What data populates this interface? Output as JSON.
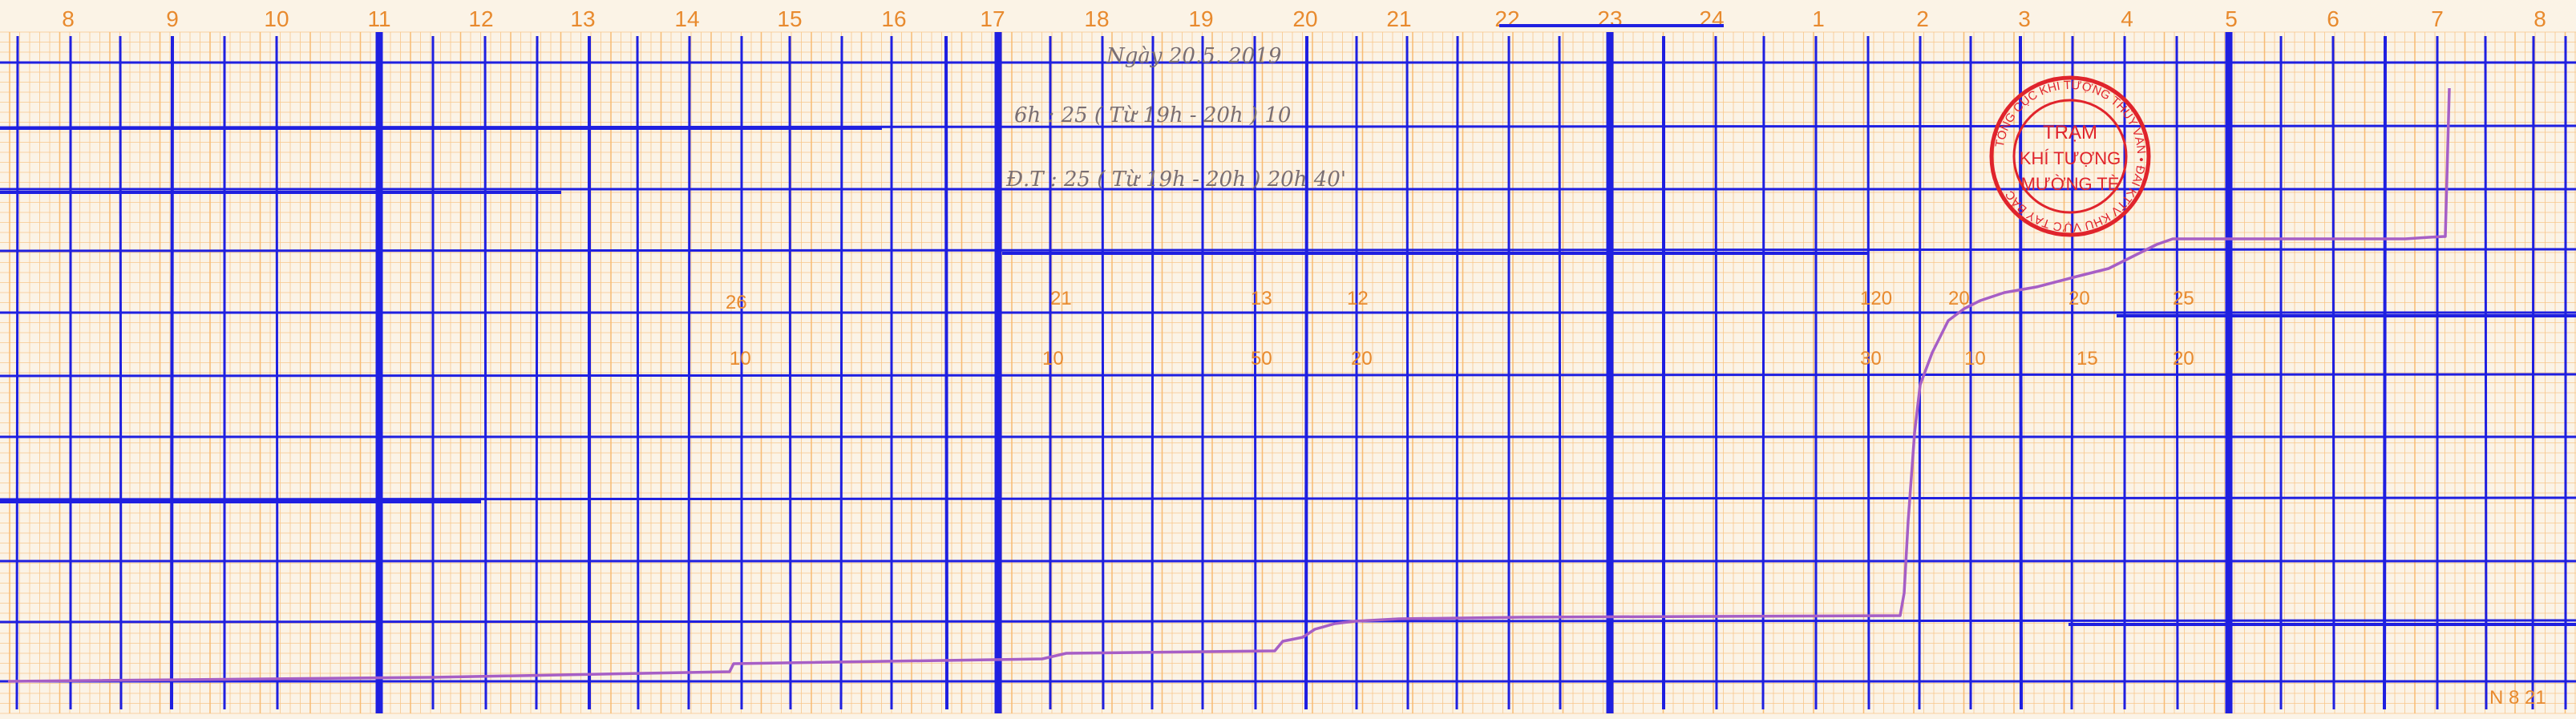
{
  "title": "",
  "chart_data": {
    "type": "line",
    "title": "",
    "xlabel": "",
    "ylabel": "",
    "hour_labels": [
      "8",
      "9",
      "10",
      "11",
      "12",
      "13",
      "14",
      "15",
      "16",
      "17",
      "18",
      "19",
      "20",
      "21",
      "22",
      "23",
      "24",
      "1",
      "2",
      "3",
      "4",
      "5",
      "6",
      "7",
      "8"
    ],
    "handwriting": {
      "date_line": "Ngày 20.5. 2019",
      "line1": "6h : 25 ( Từ 19h - 20h ) 10",
      "line2": "Đ.T : 25 ( Từ 19h - 20h ) 20h 40'"
    },
    "grid_numbers": [
      "26",
      "21",
      "13",
      "12",
      "120",
      "20",
      "20",
      "25",
      "10",
      "10",
      "50",
      "20",
      "30",
      "10",
      "15",
      "20"
    ],
    "stamp": {
      "center_lines": [
        "TRẠM",
        "KHÍ TƯỢNG",
        "MƯỜNG TÈ"
      ],
      "ring_text": "TỔNG CỤC KHÍ TƯỢNG THỦY VĂN • ĐÀI KTTV KHU VỰC TÂY BẮC"
    },
    "corner_label": "N 8 21",
    "colors": {
      "fine_grid": "#f6b76c",
      "major_grid": "#1f1fe0",
      "trace": "#a65ec6",
      "stamp": "#e0242c"
    }
  }
}
